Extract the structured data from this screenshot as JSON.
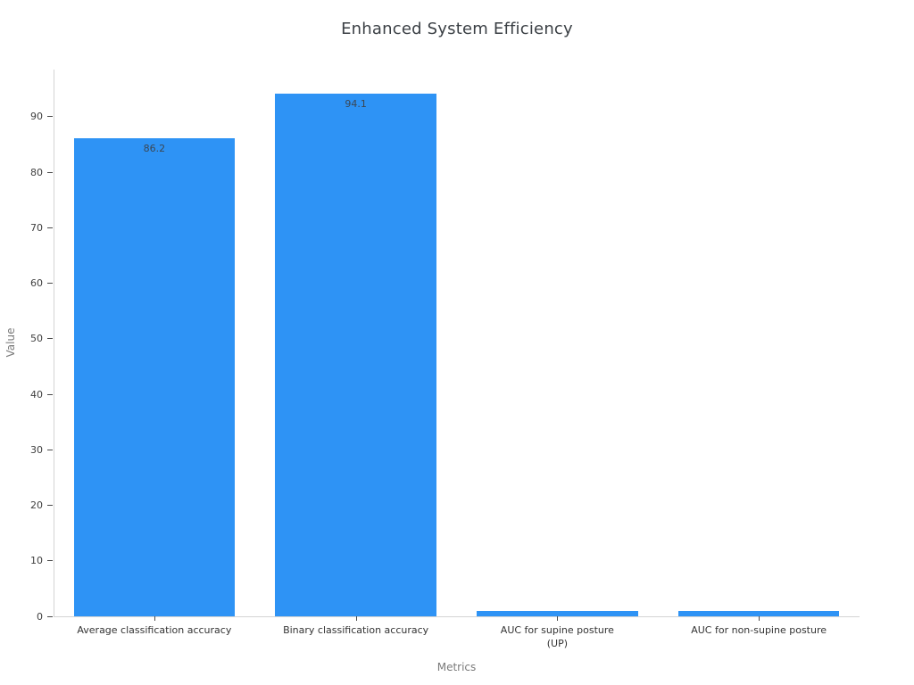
{
  "page": {
    "background_color": "#ffffff"
  },
  "chart_data": {
    "type": "bar",
    "title": "Enhanced System Efficiency",
    "xlabel": "Metrics",
    "ylabel": "Value",
    "categories": [
      "Average classification accuracy",
      "Binary classification accuracy",
      "AUC for supine posture\n(UP)",
      "AUC for non-supine posture"
    ],
    "values": [
      86.2,
      94.1,
      0.9,
      0.9
    ],
    "value_labels": [
      "86.2",
      "94.1",
      "",
      ""
    ],
    "ylim": [
      0,
      98.5
    ],
    "yticks": [
      0,
      10,
      20,
      30,
      40,
      50,
      60,
      70,
      80,
      90
    ],
    "grid": false,
    "legend": "none",
    "bar_color": "#2e93f5",
    "colors": {
      "bar": "#2e93f5",
      "axis_line": "#d4d4d4",
      "tick_mark": "#4a4a4a",
      "tick_text": "#3f3f3f",
      "category_text": "#333333",
      "title_text": "#3a3f44",
      "axis_title_text": "#7a7a7a",
      "bar_value_text": "#3b4754"
    }
  }
}
